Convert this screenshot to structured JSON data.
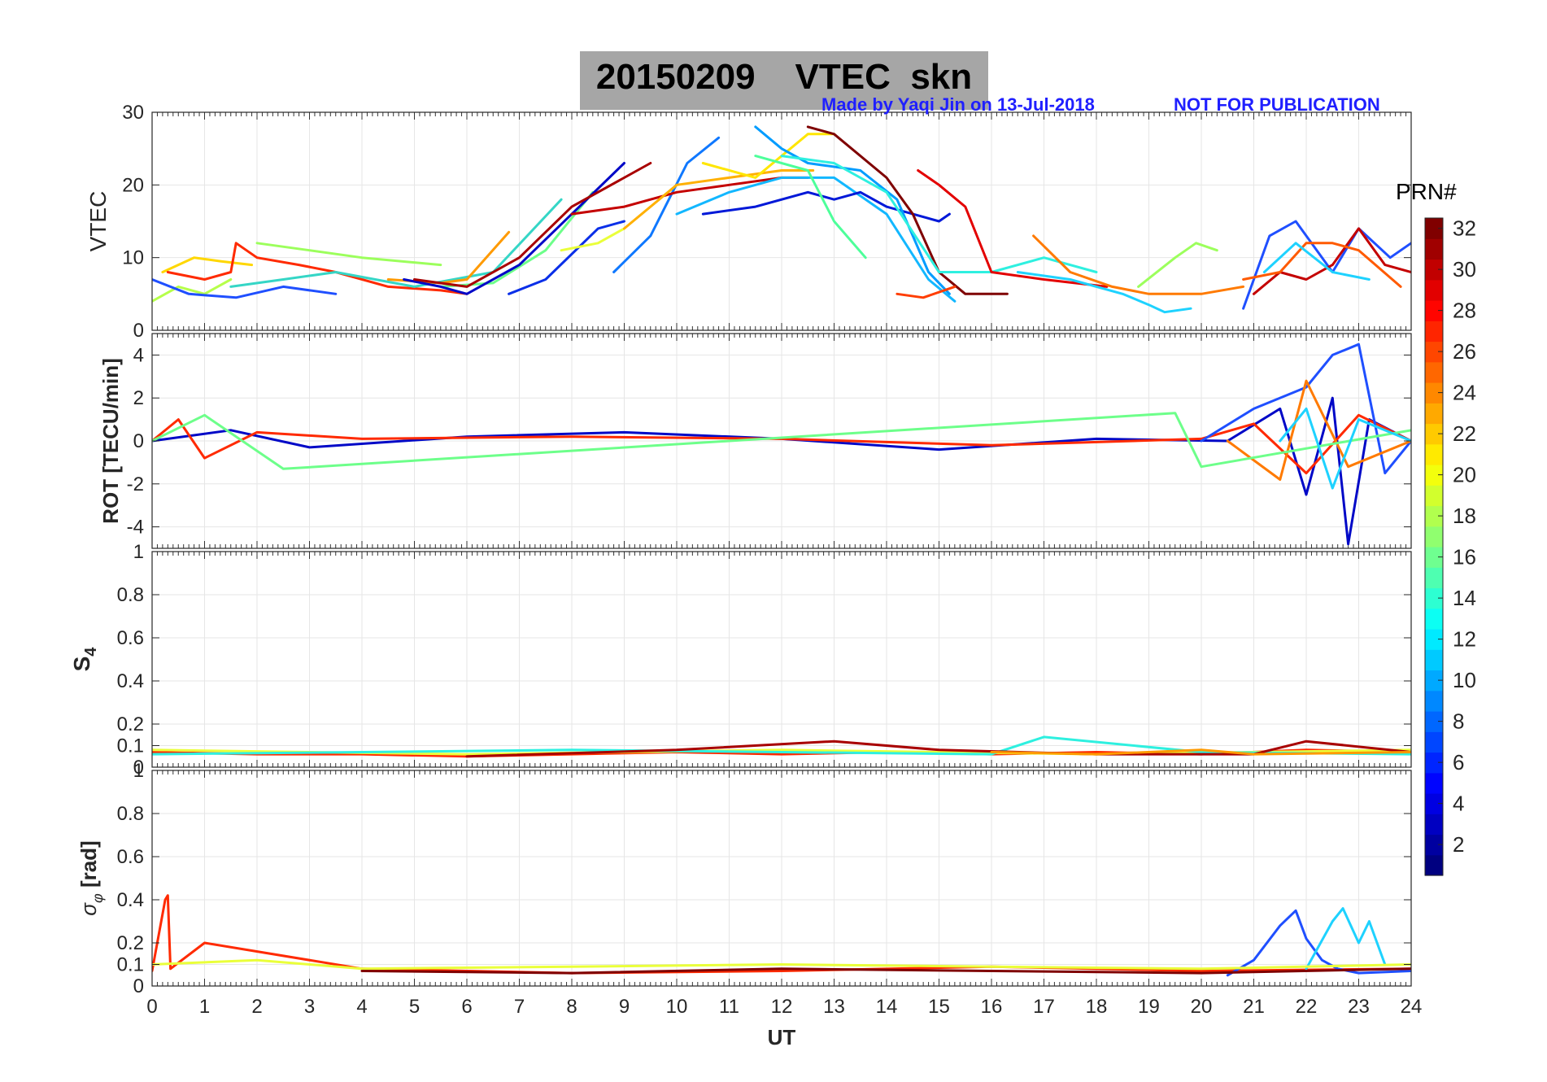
{
  "figure": {
    "date": "20150209",
    "title_product": "VTEC  skn",
    "credit_left": "Made by Yaqi Jin on 13-Jul-2018",
    "credit_right": "NOT FOR PUBLICATION",
    "colorbar_title": "PRN#"
  },
  "chart_data": [
    {
      "type": "line",
      "panel": "vtec",
      "ylabel": "VTEC",
      "ylim": [
        0,
        30
      ],
      "yticks": [
        0,
        10,
        20,
        30
      ],
      "xlim": [
        0,
        24
      ],
      "grid": true,
      "series": [
        {
          "prn": 18,
          "color": "#b6ff4a",
          "x": [
            0,
            0.5,
            1.0,
            1.5
          ],
          "y": [
            4,
            6,
            5,
            7
          ]
        },
        {
          "prn": 21,
          "color": "#ffd700",
          "x": [
            0.2,
            0.8,
            1.3,
            1.9
          ],
          "y": [
            8,
            10,
            9.5,
            9
          ]
        },
        {
          "prn": 28,
          "color": "#ff2a00",
          "x": [
            0.3,
            1.0,
            1.5,
            1.6,
            2.0,
            2.8,
            3.5,
            4.5,
            5.5,
            6.0
          ],
          "y": [
            8,
            7,
            8,
            12,
            10,
            9,
            8,
            6,
            5.5,
            5
          ]
        },
        {
          "prn": 17,
          "color": "#9cff5c",
          "x": [
            2.0,
            3.0,
            4.0,
            5.5
          ],
          "y": [
            12,
            11,
            10,
            9
          ]
        },
        {
          "prn": 6,
          "color": "#1f4fff",
          "x": [
            0,
            0.7,
            1.6,
            2.5,
            3.5
          ],
          "y": [
            7,
            5,
            4.5,
            6,
            5
          ]
        },
        {
          "prn": 14,
          "color": "#35d6c6",
          "x": [
            1.5,
            2.5,
            3.5,
            5.0,
            6.5,
            7.8
          ],
          "y": [
            6,
            7,
            8,
            6,
            8,
            18
          ]
        },
        {
          "prn": 16,
          "color": "#6dff8a",
          "x": [
            5.5,
            6.5,
            7.5,
            8.4
          ],
          "y": [
            6,
            6.5,
            11,
            19
          ]
        },
        {
          "prn": 24,
          "color": "#ff9a00",
          "x": [
            4.5,
            5.5,
            6.0,
            6.8
          ],
          "y": [
            7,
            6.5,
            7,
            13.5
          ]
        },
        {
          "prn": 2,
          "color": "#0008c7",
          "x": [
            4.8,
            5.5,
            6.0,
            7.0,
            8.0,
            9.0
          ],
          "y": [
            7,
            6,
            5,
            9,
            16,
            23
          ]
        },
        {
          "prn": 31,
          "color": "#a80000",
          "x": [
            5.0,
            6.0,
            7.0,
            8.0,
            9.5
          ],
          "y": [
            7,
            6,
            10,
            17,
            23
          ]
        },
        {
          "prn": 5,
          "color": "#0a2fe8",
          "x": [
            6.8,
            7.5,
            8.5,
            9.0
          ],
          "y": [
            5,
            7,
            14,
            15
          ]
        },
        {
          "prn": 8,
          "color": "#0f78ff",
          "x": [
            8.8,
            9.5,
            10.2,
            10.8
          ],
          "y": [
            8,
            13,
            23,
            26.5
          ]
        },
        {
          "prn": 19,
          "color": "#eaff3a",
          "x": [
            7.8,
            8.5,
            9.0
          ],
          "y": [
            11,
            12,
            14
          ]
        },
        {
          "prn": 30,
          "color": "#c40000",
          "x": [
            8.0,
            9.0,
            10.0,
            11.0,
            12.0,
            12.5
          ],
          "y": [
            16,
            17,
            19,
            20,
            21,
            21
          ]
        },
        {
          "prn": 23,
          "color": "#ffb000",
          "x": [
            9.0,
            10.0,
            11.0,
            12.0,
            12.6
          ],
          "y": [
            14,
            20,
            21,
            22,
            22
          ]
        },
        {
          "prn": 20,
          "color": "#ffe600",
          "x": [
            10.5,
            11.5,
            12.5,
            13.0
          ],
          "y": [
            23,
            21,
            27,
            27
          ]
        },
        {
          "prn": 11,
          "color": "#12b7ff",
          "x": [
            10.0,
            11.0,
            12.0,
            13.0,
            14.0,
            14.8,
            15.3
          ],
          "y": [
            16,
            19,
            21,
            21,
            16,
            7,
            4
          ]
        },
        {
          "prn": 3,
          "color": "#0018d8",
          "x": [
            10.5,
            11.5,
            12.5,
            13.0,
            13.5,
            14.0,
            15.0,
            15.2
          ],
          "y": [
            16,
            17,
            19,
            18,
            19,
            17,
            15,
            16
          ]
        },
        {
          "prn": 9,
          "color": "#009cff",
          "x": [
            11.5,
            12.0,
            12.5,
            13.5,
            14.2,
            14.8,
            15.2
          ],
          "y": [
            28,
            25,
            23,
            22,
            18,
            8,
            5
          ]
        },
        {
          "prn": 15,
          "color": "#4dff9a",
          "x": [
            11.5,
            12.5,
            13.0,
            13.6
          ],
          "y": [
            24,
            22,
            15,
            10
          ]
        },
        {
          "prn": 32,
          "color": "#7f0000",
          "x": [
            12.5,
            13.0,
            14.0,
            14.5,
            15.0,
            15.5,
            16.3
          ],
          "y": [
            28,
            27,
            21,
            16,
            8,
            5,
            5
          ]
        },
        {
          "prn": 13,
          "color": "#2ef0e0",
          "x": [
            12.0,
            13.0,
            14.0,
            15.0,
            16.0,
            17.0,
            18.0
          ],
          "y": [
            24,
            23,
            19,
            8,
            8,
            10,
            8
          ]
        },
        {
          "prn": 29,
          "color": "#e30000",
          "x": [
            14.6,
            15.0,
            15.5,
            16.0,
            17.0,
            18.2
          ],
          "y": [
            22,
            20,
            17,
            8,
            7,
            6
          ]
        },
        {
          "prn": 27,
          "color": "#ff3d00",
          "x": [
            14.2,
            14.7,
            15.3
          ],
          "y": [
            5,
            4.5,
            6
          ]
        },
        {
          "prn": 25,
          "color": "#ff7a00",
          "x": [
            16.8,
            17.5,
            18.3,
            19.0,
            20.0,
            20.8
          ],
          "y": [
            13,
            8,
            6,
            5,
            5,
            6
          ]
        },
        {
          "prn": 12,
          "color": "#1ed2ff",
          "x": [
            16.5,
            17.5,
            18.5,
            19.0,
            19.3,
            19.8
          ],
          "y": [
            8,
            7,
            5,
            3.5,
            2.5,
            3
          ]
        },
        {
          "prn": 17,
          "color": "#9cff5c",
          "x": [
            18.8,
            19.5,
            19.9,
            20.3
          ],
          "y": [
            6,
            10,
            12,
            11
          ]
        },
        {
          "prn": 6,
          "color": "#1f4fff",
          "x": [
            20.8,
            21.3,
            21.8,
            22.5,
            23.0,
            23.6,
            24.0
          ],
          "y": [
            3,
            13,
            15,
            8,
            14,
            10,
            12
          ]
        },
        {
          "prn": 30,
          "color": "#c40000",
          "x": [
            21.0,
            21.5,
            22.0,
            22.5,
            23.0,
            23.5,
            24.0
          ],
          "y": [
            5,
            8,
            7,
            9,
            14,
            9,
            8
          ]
        },
        {
          "prn": 26,
          "color": "#ff5a00",
          "x": [
            20.8,
            21.5,
            22.0,
            22.5,
            23.0,
            23.8
          ],
          "y": [
            7,
            8,
            12,
            12,
            11,
            6
          ]
        },
        {
          "prn": 12,
          "color": "#1ed2ff",
          "x": [
            21.2,
            21.8,
            22.5,
            23.2
          ],
          "y": [
            8,
            12,
            8,
            7
          ]
        }
      ]
    },
    {
      "type": "line",
      "panel": "rot",
      "ylabel": "ROT [TECU/min]",
      "ylim": [
        -5,
        5
      ],
      "yticks": [
        -4,
        -2,
        0,
        2,
        4
      ],
      "xlim": [
        0,
        24
      ],
      "grid": true,
      "series": [
        {
          "prn": 2,
          "color": "#0008c7",
          "x": [
            0,
            1.5,
            3.0,
            6.0,
            9.0,
            12.0,
            15.0,
            18.0,
            20.5,
            21.5,
            22.0,
            22.5,
            22.8,
            23.2,
            24.0
          ],
          "y": [
            0,
            0.5,
            -0.3,
            0.2,
            0.4,
            0.1,
            -0.4,
            0.1,
            0,
            1.5,
            -2.5,
            2.0,
            -4.8,
            1.0,
            0
          ]
        },
        {
          "prn": 28,
          "color": "#ff2a00",
          "x": [
            0,
            0.5,
            1.0,
            2.0,
            4.0,
            8.0,
            12.0,
            16.0,
            20.0,
            21.0,
            22.0,
            23.0,
            24.0
          ],
          "y": [
            0,
            1.0,
            -0.8,
            0.4,
            0.1,
            0.2,
            0.1,
            -0.2,
            0.1,
            0.8,
            -1.5,
            1.2,
            0
          ]
        },
        {
          "prn": 6,
          "color": "#1f4fff",
          "x": [
            20.0,
            21.0,
            22.0,
            22.5,
            23.0,
            23.5,
            24.0
          ],
          "y": [
            0,
            1.5,
            2.5,
            4.0,
            4.5,
            -1.5,
            0
          ]
        },
        {
          "prn": 25,
          "color": "#ff7a00",
          "x": [
            20.5,
            21.5,
            22.0,
            22.8,
            24.0
          ],
          "y": [
            0,
            -1.8,
            2.8,
            -1.2,
            0
          ]
        },
        {
          "prn": 16,
          "color": "#6dff8a",
          "x": [
            0,
            1.0,
            2.5,
            19.5,
            20.0,
            24.0
          ],
          "y": [
            0,
            1.2,
            -1.3,
            1.3,
            -1.2,
            0.5
          ]
        },
        {
          "prn": 12,
          "color": "#1ed2ff",
          "x": [
            21.5,
            22.0,
            22.5,
            23.0,
            24.0
          ],
          "y": [
            0,
            1.5,
            -2.2,
            1.0,
            0
          ]
        }
      ]
    },
    {
      "type": "line",
      "panel": "s4",
      "ylabel": "S4",
      "ylim": [
        0,
        1
      ],
      "yticks": [
        0,
        0.1,
        0.2,
        0.4,
        0.6,
        0.8,
        1
      ],
      "xlim": [
        0,
        24
      ],
      "grid": true,
      "series": [
        {
          "prn": 28,
          "color": "#ff2a00",
          "x": [
            0,
            2,
            4,
            6,
            8,
            10,
            12,
            14,
            16,
            18,
            20,
            22,
            24
          ],
          "y": [
            0.07,
            0.06,
            0.06,
            0.05,
            0.06,
            0.07,
            0.06,
            0.07,
            0.06,
            0.07,
            0.06,
            0.08,
            0.07
          ]
        },
        {
          "prn": 19,
          "color": "#eaff3a",
          "x": [
            0,
            3,
            6,
            9,
            12,
            15,
            18,
            21,
            24
          ],
          "y": [
            0.08,
            0.07,
            0.06,
            0.07,
            0.08,
            0.07,
            0.06,
            0.07,
            0.08
          ]
        },
        {
          "prn": 13,
          "color": "#2ef0e0",
          "x": [
            0,
            4,
            8,
            12,
            16,
            17,
            20,
            24
          ],
          "y": [
            0.06,
            0.07,
            0.08,
            0.07,
            0.06,
            0.14,
            0.07,
            0.06
          ]
        },
        {
          "prn": 31,
          "color": "#a80000",
          "x": [
            6,
            10,
            13,
            15,
            18,
            21,
            22,
            24
          ],
          "y": [
            0.05,
            0.08,
            0.12,
            0.08,
            0.06,
            0.06,
            0.12,
            0.07
          ]
        },
        {
          "prn": 24,
          "color": "#ff9a00",
          "x": [
            16,
            18,
            20,
            21,
            24
          ],
          "y": [
            0.07,
            0.06,
            0.08,
            0.06,
            0.07
          ]
        }
      ]
    },
    {
      "type": "line",
      "panel": "sigma_phi",
      "ylabel": "σφ [rad]",
      "ylim": [
        0,
        1
      ],
      "yticks": [
        0,
        0.1,
        0.2,
        0.4,
        0.6,
        0.8,
        1
      ],
      "xlim": [
        0,
        24
      ],
      "grid": true,
      "series": [
        {
          "prn": 28,
          "color": "#ff2a00",
          "x": [
            0,
            0.25,
            0.3,
            0.35,
            1.0,
            4.0,
            8.0,
            12.0,
            16.0,
            20.0,
            24.0
          ],
          "y": [
            0.07,
            0.4,
            0.42,
            0.08,
            0.2,
            0.08,
            0.06,
            0.07,
            0.09,
            0.07,
            0.08
          ]
        },
        {
          "prn": 6,
          "color": "#1f4fff",
          "x": [
            20.5,
            21.0,
            21.5,
            21.8,
            22.0,
            22.3,
            22.6,
            23.0,
            24.0
          ],
          "y": [
            0.05,
            0.12,
            0.28,
            0.35,
            0.22,
            0.12,
            0.08,
            0.06,
            0.07
          ]
        },
        {
          "prn": 12,
          "color": "#1ed2ff",
          "x": [
            22.0,
            22.5,
            22.7,
            23.0,
            23.2,
            23.5
          ],
          "y": [
            0.08,
            0.3,
            0.36,
            0.2,
            0.3,
            0.1
          ]
        },
        {
          "prn": 19,
          "color": "#eaff3a",
          "x": [
            0,
            2,
            4,
            8,
            12,
            16,
            20,
            24
          ],
          "y": [
            0.1,
            0.12,
            0.08,
            0.09,
            0.1,
            0.09,
            0.08,
            0.1
          ]
        },
        {
          "prn": 32,
          "color": "#7f0000",
          "x": [
            4,
            8,
            12,
            16,
            20,
            24
          ],
          "y": [
            0.07,
            0.06,
            0.08,
            0.07,
            0.06,
            0.08
          ]
        }
      ]
    }
  ],
  "xaxis": {
    "label": "UT",
    "ticks": [
      0,
      1,
      2,
      3,
      4,
      5,
      6,
      7,
      8,
      9,
      10,
      11,
      12,
      13,
      14,
      15,
      16,
      17,
      18,
      19,
      20,
      21,
      22,
      23,
      24
    ]
  },
  "colorbar": {
    "min": 1,
    "max": 32,
    "ticks": [
      2,
      4,
      6,
      8,
      10,
      12,
      14,
      16,
      18,
      20,
      22,
      24,
      26,
      28,
      30,
      32
    ]
  }
}
